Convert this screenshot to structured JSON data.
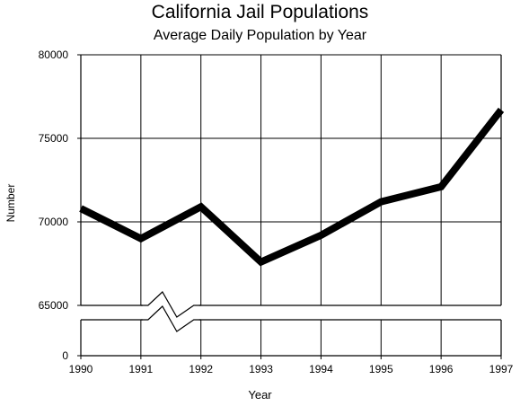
{
  "chart_data": {
    "type": "line",
    "title": "California Jail Populations",
    "subtitle": "Average Daily Population by Year",
    "xlabel": "Year",
    "ylabel": "Number",
    "x": [
      "1990",
      "1991",
      "1992",
      "1993",
      "1994",
      "1995",
      "1996",
      "1997"
    ],
    "series": [
      {
        "values": [
          70800,
          69000,
          70900,
          67600,
          69200,
          71200,
          72100,
          76700
        ]
      }
    ],
    "yticks": [
      0,
      65000,
      70000,
      75000,
      80000
    ],
    "ylim": [
      65000,
      80000
    ],
    "axis_break": "between 0 and 65000",
    "grid": true,
    "colors": {
      "line": "#000000",
      "grid": "#000000",
      "background": "#ffffff"
    }
  }
}
